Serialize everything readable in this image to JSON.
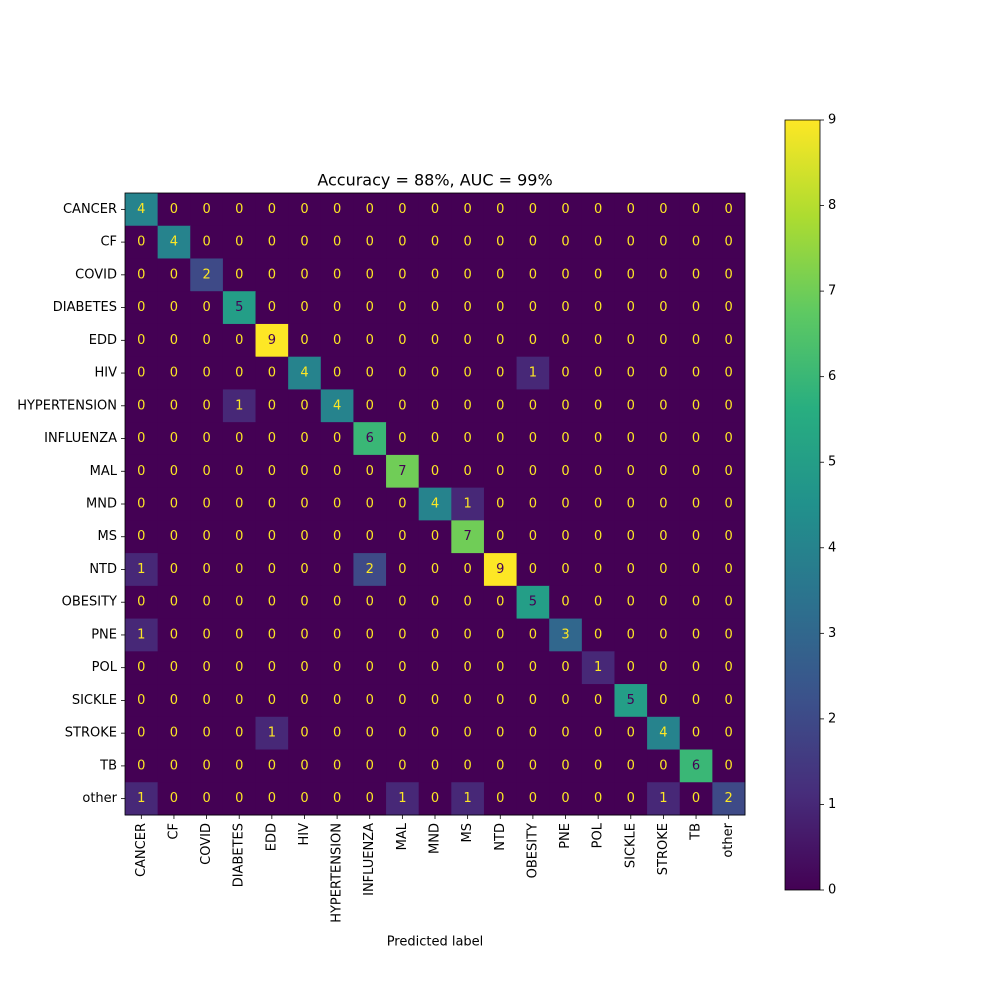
{
  "chart_data": {
    "type": "heatmap",
    "title": "Accuracy = 88%, AUC = 99%",
    "x_label": "Predicted label",
    "categories": [
      "CANCER",
      "CF",
      "COVID",
      "DIABETES",
      "EDD",
      "HIV",
      "HYPERTENSION",
      "INFLUENZA",
      "MAL",
      "MND",
      "MS",
      "NTD",
      "OBESITY",
      "PNE",
      "POL",
      "SICKLE",
      "STROKE",
      "TB",
      "other"
    ],
    "values": [
      [
        4,
        0,
        0,
        0,
        0,
        0,
        0,
        0,
        0,
        0,
        0,
        0,
        0,
        0,
        0,
        0,
        0,
        0,
        0
      ],
      [
        0,
        4,
        0,
        0,
        0,
        0,
        0,
        0,
        0,
        0,
        0,
        0,
        0,
        0,
        0,
        0,
        0,
        0,
        0
      ],
      [
        0,
        0,
        2,
        0,
        0,
        0,
        0,
        0,
        0,
        0,
        0,
        0,
        0,
        0,
        0,
        0,
        0,
        0,
        0
      ],
      [
        0,
        0,
        0,
        5,
        0,
        0,
        0,
        0,
        0,
        0,
        0,
        0,
        0,
        0,
        0,
        0,
        0,
        0,
        0
      ],
      [
        0,
        0,
        0,
        0,
        9,
        0,
        0,
        0,
        0,
        0,
        0,
        0,
        0,
        0,
        0,
        0,
        0,
        0,
        0
      ],
      [
        0,
        0,
        0,
        0,
        0,
        4,
        0,
        0,
        0,
        0,
        0,
        0,
        1,
        0,
        0,
        0,
        0,
        0,
        0
      ],
      [
        0,
        0,
        0,
        1,
        0,
        0,
        4,
        0,
        0,
        0,
        0,
        0,
        0,
        0,
        0,
        0,
        0,
        0,
        0
      ],
      [
        0,
        0,
        0,
        0,
        0,
        0,
        0,
        6,
        0,
        0,
        0,
        0,
        0,
        0,
        0,
        0,
        0,
        0,
        0
      ],
      [
        0,
        0,
        0,
        0,
        0,
        0,
        0,
        0,
        7,
        0,
        0,
        0,
        0,
        0,
        0,
        0,
        0,
        0,
        0
      ],
      [
        0,
        0,
        0,
        0,
        0,
        0,
        0,
        0,
        0,
        4,
        1,
        0,
        0,
        0,
        0,
        0,
        0,
        0,
        0
      ],
      [
        0,
        0,
        0,
        0,
        0,
        0,
        0,
        0,
        0,
        0,
        7,
        0,
        0,
        0,
        0,
        0,
        0,
        0,
        0
      ],
      [
        1,
        0,
        0,
        0,
        0,
        0,
        0,
        2,
        0,
        0,
        0,
        9,
        0,
        0,
        0,
        0,
        0,
        0,
        0
      ],
      [
        0,
        0,
        0,
        0,
        0,
        0,
        0,
        0,
        0,
        0,
        0,
        0,
        5,
        0,
        0,
        0,
        0,
        0,
        0
      ],
      [
        1,
        0,
        0,
        0,
        0,
        0,
        0,
        0,
        0,
        0,
        0,
        0,
        0,
        3,
        0,
        0,
        0,
        0,
        0
      ],
      [
        0,
        0,
        0,
        0,
        0,
        0,
        0,
        0,
        0,
        0,
        0,
        0,
        0,
        0,
        1,
        0,
        0,
        0,
        0
      ],
      [
        0,
        0,
        0,
        0,
        0,
        0,
        0,
        0,
        0,
        0,
        0,
        0,
        0,
        0,
        0,
        5,
        0,
        0,
        0
      ],
      [
        0,
        0,
        0,
        0,
        1,
        0,
        0,
        0,
        0,
        0,
        0,
        0,
        0,
        0,
        0,
        0,
        4,
        0,
        0
      ],
      [
        0,
        0,
        0,
        0,
        0,
        0,
        0,
        0,
        0,
        0,
        0,
        0,
        0,
        0,
        0,
        0,
        0,
        6,
        0
      ],
      [
        1,
        0,
        0,
        0,
        0,
        0,
        0,
        0,
        1,
        0,
        1,
        0,
        0,
        0,
        0,
        0,
        1,
        0,
        2
      ]
    ],
    "colormap": "viridis",
    "clim": [
      0,
      9
    ],
    "cticks": [
      0,
      1,
      2,
      3,
      4,
      5,
      6,
      7,
      8,
      9
    ]
  }
}
